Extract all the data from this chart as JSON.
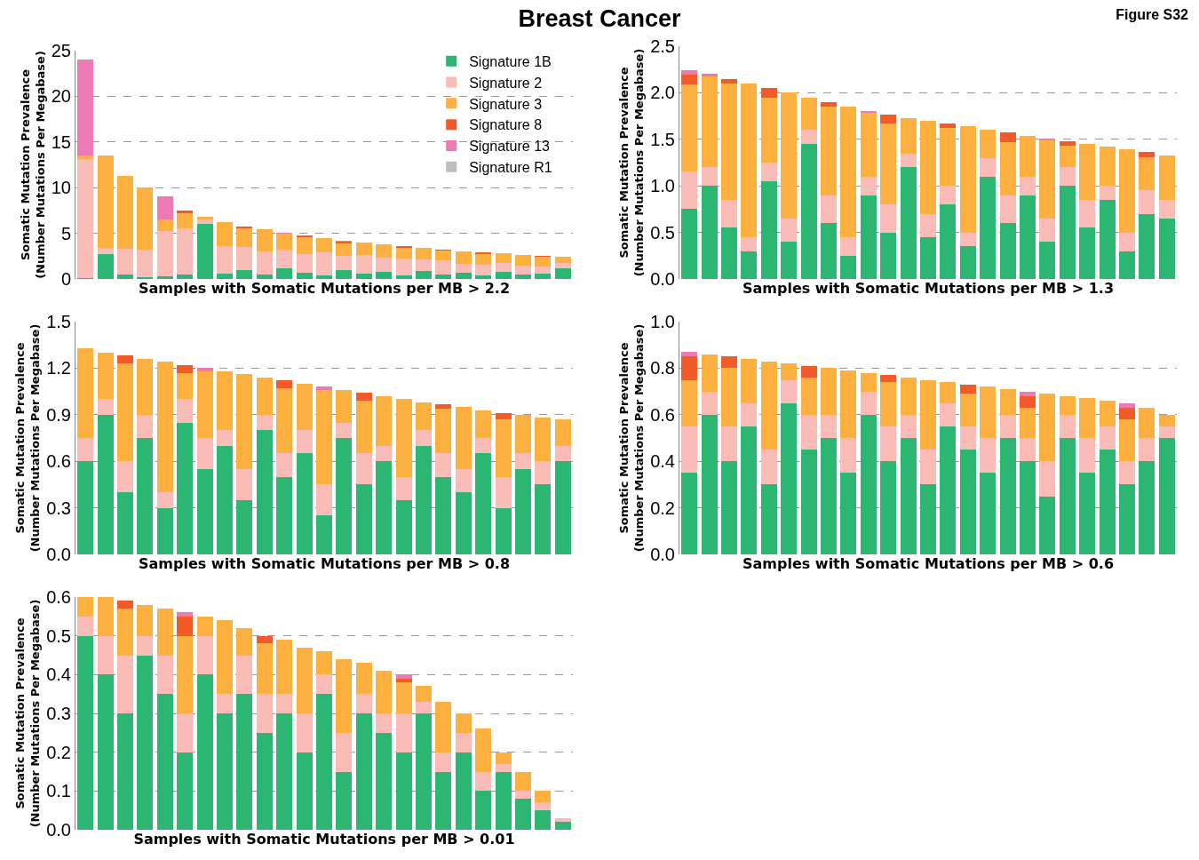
{
  "chart_data": [
    {
      "type": "bar",
      "stacked": true,
      "title": "Breast Cancer",
      "annotations": [
        "Figure S32"
      ],
      "xlabel": "Samples with Somatic Mutations per MB > 2.2",
      "ylabel": "Somatic Mutation Prevalence\n(Number Mutations Per Megabase)",
      "categories": [
        null,
        null,
        null,
        null,
        null,
        null,
        null,
        null,
        null,
        null,
        null,
        null,
        null,
        null,
        null,
        null,
        null,
        null,
        null,
        null,
        null,
        null,
        null,
        null,
        null
      ],
      "ylim": [
        0,
        25
      ],
      "yticks": [
        0,
        5,
        10,
        15,
        20,
        25
      ],
      "grid": "y",
      "legend": "top right",
      "series": [
        {
          "name": "Signature 1B",
          "color": "#2bb673",
          "values": [
            0.1,
            2.7,
            0.5,
            0.2,
            0.3,
            0.5,
            6,
            0.6,
            1.0,
            0.5,
            1.2,
            0.7,
            0.4,
            1.0,
            0.6,
            0.8,
            0.4,
            0.9,
            0.5,
            0.7,
            0.4,
            0.8,
            0.5,
            0.6,
            1.2
          ]
        },
        {
          "name": "Signature 2",
          "color": "#f9bcb6",
          "values": [
            13,
            0.7,
            2.8,
            3.0,
            5.0,
            5,
            0.5,
            3,
            2.5,
            2.5,
            2,
            2.0,
            2.5,
            1.5,
            2.0,
            1.5,
            1.8,
            1.2,
            1.5,
            1.0,
            1.2,
            1.0,
            1.0,
            0.8,
            0.6
          ]
        },
        {
          "name": "Signature 3",
          "color": "#fbb040",
          "values": [
            0.4,
            10.1,
            8.0,
            6.8,
            1.2,
            1.7,
            0.3,
            2.6,
            2.0,
            2.4,
            1.8,
            1.9,
            1.6,
            1.4,
            1.4,
            1.5,
            1.2,
            1.3,
            1.1,
            1.3,
            1.1,
            1.0,
            1.1,
            1.0,
            0.6
          ]
        },
        {
          "name": "Signature 8",
          "color": "#f15a29",
          "values": [
            0,
            0,
            0,
            0,
            0,
            0.3,
            0,
            0,
            0.2,
            0,
            0,
            0.2,
            0,
            0.2,
            0,
            0,
            0.2,
            0,
            0.1,
            0,
            0.2,
            0,
            0,
            0.1,
            0
          ]
        },
        {
          "name": "Signature 13",
          "color": "#ee7ab5",
          "values": [
            10.5,
            0,
            0,
            0,
            2.5,
            0,
            0,
            0,
            0,
            0,
            0.1,
            0,
            0,
            0.1,
            0,
            0,
            0,
            0,
            0,
            0,
            0,
            0,
            0,
            0,
            0
          ]
        },
        {
          "name": "Signature R1",
          "color": "#bcbec0",
          "values": [
            0,
            0,
            0,
            0,
            0,
            0,
            0,
            0,
            0,
            0,
            0,
            0,
            0,
            0,
            0,
            0,
            0,
            0,
            0,
            0,
            0,
            0,
            0,
            0,
            0
          ]
        }
      ]
    },
    {
      "type": "bar",
      "stacked": true,
      "xlabel": "Samples with Somatic Mutations per MB > 1.3",
      "ylabel": "Somatic Mutation Prevalence\n(Number Mutations Per Megabase)",
      "categories": [
        null,
        null,
        null,
        null,
        null,
        null,
        null,
        null,
        null,
        null,
        null,
        null,
        null,
        null,
        null,
        null,
        null,
        null,
        null,
        null,
        null,
        null,
        null,
        null,
        null
      ],
      "ylim": [
        0,
        2.5
      ],
      "yticks": [
        {
          "value": 0,
          "label": "0.0"
        },
        0.5,
        {
          "value": 1,
          "label": "1.0"
        },
        1.5,
        {
          "value": 2,
          "label": "2.0"
        },
        2.5
      ],
      "grid": "y",
      "series": [
        {
          "color": "#2bb673",
          "values": [
            0.75,
            1.0,
            0.55,
            0.3,
            1.05,
            0.4,
            1.45,
            0.6,
            0.25,
            0.9,
            0.5,
            1.2,
            0.45,
            0.8,
            0.35,
            1.1,
            0.6,
            0.9,
            0.4,
            1.0,
            0.55,
            0.85,
            0.3,
            0.7,
            0.65
          ]
        },
        {
          "color": "#f9bcb6",
          "values": [
            0.4,
            0.2,
            0.3,
            0.15,
            0.2,
            0.25,
            0.15,
            0.3,
            0.2,
            0.2,
            0.3,
            0.15,
            0.25,
            0.2,
            0.15,
            0.2,
            0.3,
            0.2,
            0.25,
            0.2,
            0.3,
            0.15,
            0.2,
            0.25,
            0.2
          ]
        },
        {
          "color": "#fbb040",
          "values": [
            0.94,
            0.98,
            1.25,
            1.65,
            0.7,
            1.35,
            0.35,
            0.95,
            1.4,
            0.68,
            0.87,
            0.38,
            1.0,
            0.62,
            1.14,
            0.3,
            0.57,
            0.44,
            0.84,
            0.23,
            0.6,
            0.42,
            0.89,
            0.36,
            0.48
          ]
        },
        {
          "color": "#f15a29",
          "values": [
            0.1,
            0,
            0.05,
            0,
            0.1,
            0,
            0,
            0.05,
            0,
            0,
            0.1,
            0,
            0,
            0.05,
            0,
            0,
            0.1,
            0,
            0,
            0.05,
            0,
            0,
            0,
            0.05,
            0
          ]
        },
        {
          "color": "#ee7ab5",
          "values": [
            0.05,
            0.02,
            0,
            0,
            0,
            0,
            0,
            0,
            0,
            0.02,
            0,
            0,
            0,
            0,
            0,
            0,
            0,
            0,
            0.02,
            0,
            0,
            0,
            0,
            0,
            0
          ]
        },
        {
          "color": "#bcbec0",
          "values": [
            0,
            0,
            0,
            0,
            0,
            0,
            0,
            0,
            0,
            0,
            0,
            0,
            0,
            0,
            0,
            0,
            0,
            0,
            0,
            0,
            0,
            0,
            0,
            0,
            0
          ]
        }
      ]
    },
    {
      "type": "bar",
      "stacked": true,
      "xlabel": "Samples with Somatic Mutations per MB > 0.8",
      "ylabel": "Somatic Mutation Prevalence\n(Number Mutations Per Megabase)",
      "categories": [
        null,
        null,
        null,
        null,
        null,
        null,
        null,
        null,
        null,
        null,
        null,
        null,
        null,
        null,
        null,
        null,
        null,
        null,
        null,
        null,
        null,
        null,
        null,
        null,
        null
      ],
      "ylim": [
        0,
        1.5
      ],
      "yticks": [
        {
          "value": 0,
          "label": "0.0"
        },
        0.3,
        0.6,
        0.9,
        1.2,
        1.5
      ],
      "grid": "y",
      "series": [
        {
          "color": "#2bb673",
          "values": [
            0.6,
            0.9,
            0.4,
            0.75,
            0.3,
            0.85,
            0.55,
            0.7,
            0.35,
            0.8,
            0.5,
            0.65,
            0.25,
            0.75,
            0.45,
            0.6,
            0.35,
            0.7,
            0.5,
            0.4,
            0.65,
            0.3,
            0.55,
            0.45,
            0.6
          ]
        },
        {
          "color": "#f9bcb6",
          "values": [
            0.15,
            0.1,
            0.2,
            0.15,
            0.1,
            0.15,
            0.2,
            0.1,
            0.2,
            0.1,
            0.15,
            0.15,
            0.2,
            0.1,
            0.2,
            0.1,
            0.15,
            0.1,
            0.15,
            0.15,
            0.1,
            0.2,
            0.1,
            0.15,
            0.1
          ]
        },
        {
          "color": "#fbb040",
          "values": [
            0.58,
            0.3,
            0.63,
            0.36,
            0.84,
            0.17,
            0.43,
            0.38,
            0.61,
            0.24,
            0.42,
            0.3,
            0.61,
            0.21,
            0.34,
            0.32,
            0.5,
            0.18,
            0.29,
            0.4,
            0.18,
            0.37,
            0.25,
            0.28,
            0.17
          ]
        },
        {
          "color": "#f15a29",
          "values": [
            0,
            0,
            0.05,
            0,
            0,
            0.05,
            0,
            0,
            0,
            0,
            0.05,
            0,
            0,
            0,
            0.05,
            0,
            0,
            0,
            0.03,
            0,
            0,
            0.04,
            0,
            0,
            0
          ]
        },
        {
          "color": "#ee7ab5",
          "values": [
            0,
            0,
            0,
            0,
            0,
            0,
            0.02,
            0,
            0,
            0,
            0,
            0,
            0.02,
            0,
            0,
            0,
            0,
            0,
            0,
            0,
            0,
            0,
            0,
            0,
            0
          ]
        },
        {
          "color": "#bcbec0",
          "values": [
            0,
            0,
            0,
            0,
            0,
            0,
            0,
            0,
            0,
            0,
            0,
            0,
            0,
            0,
            0,
            0,
            0,
            0,
            0,
            0,
            0,
            0,
            0,
            0,
            0
          ]
        }
      ]
    },
    {
      "type": "bar",
      "stacked": true,
      "xlabel": "Samples with Somatic Mutations per MB > 0.6",
      "ylabel": "Somatic Mutation Prevalence\n(Number Mutations Per Megabase)",
      "categories": [
        null,
        null,
        null,
        null,
        null,
        null,
        null,
        null,
        null,
        null,
        null,
        null,
        null,
        null,
        null,
        null,
        null,
        null,
        null,
        null,
        null,
        null,
        null,
        null,
        null
      ],
      "ylim": [
        0,
        1
      ],
      "yticks": [
        {
          "value": 0,
          "label": "0.0"
        },
        0.2,
        0.4,
        0.6,
        0.8,
        {
          "value": 1,
          "label": "1.0"
        }
      ],
      "grid": "y",
      "series": [
        {
          "color": "#2bb673",
          "values": [
            0.35,
            0.6,
            0.4,
            0.55,
            0.3,
            0.65,
            0.45,
            0.5,
            0.35,
            0.6,
            0.4,
            0.5,
            0.3,
            0.55,
            0.45,
            0.35,
            0.5,
            0.4,
            0.25,
            0.5,
            0.35,
            0.45,
            0.3,
            0.4,
            0.5
          ]
        },
        {
          "color": "#f9bcb6",
          "values": [
            0.2,
            0.1,
            0.15,
            0.1,
            0.15,
            0.1,
            0.15,
            0.1,
            0.15,
            0.1,
            0.15,
            0.1,
            0.15,
            0.1,
            0.1,
            0.15,
            0.1,
            0.1,
            0.15,
            0.1,
            0.15,
            0.1,
            0.1,
            0.1,
            0.05
          ]
        },
        {
          "color": "#fbb040",
          "values": [
            0.2,
            0.16,
            0.25,
            0.19,
            0.38,
            0.07,
            0.16,
            0.2,
            0.29,
            0.08,
            0.19,
            0.16,
            0.3,
            0.09,
            0.14,
            0.22,
            0.11,
            0.13,
            0.29,
            0.08,
            0.17,
            0.11,
            0.18,
            0.13,
            0.05
          ]
        },
        {
          "color": "#f15a29",
          "values": [
            0.1,
            0,
            0.05,
            0,
            0,
            0,
            0.05,
            0,
            0,
            0,
            0.03,
            0,
            0,
            0,
            0.04,
            0,
            0,
            0.05,
            0,
            0,
            0,
            0,
            0.05,
            0,
            0
          ]
        },
        {
          "color": "#ee7ab5",
          "values": [
            0.02,
            0,
            0,
            0,
            0,
            0,
            0,
            0,
            0,
            0,
            0,
            0,
            0,
            0,
            0,
            0,
            0,
            0.02,
            0,
            0,
            0,
            0,
            0.02,
            0,
            0
          ]
        },
        {
          "color": "#bcbec0",
          "values": [
            0,
            0,
            0,
            0,
            0,
            0,
            0,
            0,
            0,
            0,
            0,
            0,
            0,
            0,
            0,
            0,
            0,
            0,
            0,
            0,
            0,
            0,
            0,
            0,
            0
          ]
        }
      ]
    },
    {
      "type": "bar",
      "stacked": true,
      "xlabel": "Samples with Somatic Mutations per MB > 0.01",
      "ylabel": "Somatic Mutation Prevalence\n(Number Mutations Per Megabase)",
      "categories": [
        null,
        null,
        null,
        null,
        null,
        null,
        null,
        null,
        null,
        null,
        null,
        null,
        null,
        null,
        null,
        null,
        null,
        null,
        null,
        null,
        null,
        null,
        null,
        null,
        null
      ],
      "ylim": [
        0,
        0.6
      ],
      "yticks": [
        {
          "value": 0,
          "label": "0.0"
        },
        0.1,
        0.2,
        0.3,
        0.4,
        0.5,
        0.6
      ],
      "grid": "y",
      "series": [
        {
          "color": "#2bb673",
          "values": [
            0.5,
            0.4,
            0.3,
            0.45,
            0.35,
            0.2,
            0.4,
            0.3,
            0.35,
            0.25,
            0.3,
            0.2,
            0.35,
            0.15,
            0.3,
            0.25,
            0.2,
            0.3,
            0.15,
            0.2,
            0.1,
            0.15,
            0.08,
            0.05,
            0.02
          ]
        },
        {
          "color": "#f9bcb6",
          "values": [
            0.05,
            0.1,
            0.15,
            0.05,
            0.1,
            0.1,
            0.1,
            0.05,
            0.1,
            0.1,
            0.05,
            0.1,
            0.05,
            0.1,
            0.05,
            0.05,
            0.1,
            0.03,
            0.05,
            0.05,
            0.05,
            0.02,
            0.02,
            0.02,
            0.01
          ]
        },
        {
          "color": "#fbb040",
          "values": [
            0.05,
            0.1,
            0.12,
            0.08,
            0.12,
            0.2,
            0.05,
            0.19,
            0.07,
            0.13,
            0.14,
            0.17,
            0.06,
            0.19,
            0.08,
            0.11,
            0.08,
            0.04,
            0.13,
            0.05,
            0.11,
            0.03,
            0.05,
            0.03,
            0
          ]
        },
        {
          "color": "#f15a29",
          "values": [
            0,
            0,
            0.02,
            0,
            0,
            0.05,
            0,
            0,
            0,
            0.02,
            0,
            0,
            0,
            0,
            0,
            0,
            0.01,
            0,
            0,
            0,
            0,
            0,
            0,
            0,
            0
          ]
        },
        {
          "color": "#ee7ab5",
          "values": [
            0,
            0,
            0,
            0,
            0,
            0.01,
            0,
            0,
            0,
            0,
            0,
            0,
            0,
            0,
            0,
            0,
            0.01,
            0,
            0,
            0,
            0,
            0,
            0,
            0,
            0
          ]
        },
        {
          "color": "#bcbec0",
          "values": [
            0,
            0,
            0,
            0,
            0,
            0,
            0,
            0,
            0,
            0,
            0,
            0,
            0,
            0,
            0,
            0,
            0,
            0,
            0,
            0,
            0,
            0,
            0,
            0,
            0
          ]
        }
      ]
    }
  ]
}
